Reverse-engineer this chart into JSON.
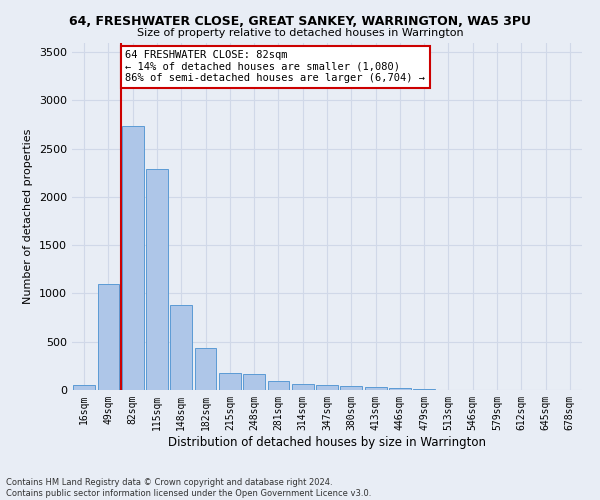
{
  "title": "64, FRESHWATER CLOSE, GREAT SANKEY, WARRINGTON, WA5 3PU",
  "subtitle": "Size of property relative to detached houses in Warrington",
  "xlabel": "Distribution of detached houses by size in Warrington",
  "ylabel": "Number of detached properties",
  "categories": [
    "16sqm",
    "49sqm",
    "82sqm",
    "115sqm",
    "148sqm",
    "182sqm",
    "215sqm",
    "248sqm",
    "281sqm",
    "314sqm",
    "347sqm",
    "380sqm",
    "413sqm",
    "446sqm",
    "479sqm",
    "513sqm",
    "546sqm",
    "579sqm",
    "612sqm",
    "645sqm",
    "678sqm"
  ],
  "values": [
    55,
    1100,
    2730,
    2290,
    880,
    430,
    175,
    165,
    95,
    60,
    55,
    45,
    35,
    25,
    10,
    5,
    5,
    0,
    0,
    0,
    0
  ],
  "bar_color": "#aec6e8",
  "bar_edge_color": "#5b9bd5",
  "vline_x": 2,
  "vline_color": "#cc0000",
  "annotation_text": "64 FRESHWATER CLOSE: 82sqm\n← 14% of detached houses are smaller (1,080)\n86% of semi-detached houses are larger (6,704) →",
  "annotation_box_color": "#ffffff",
  "annotation_box_edge": "#cc0000",
  "ylim": [
    0,
    3600
  ],
  "yticks": [
    0,
    500,
    1000,
    1500,
    2000,
    2500,
    3000,
    3500
  ],
  "grid_color": "#d0d8e8",
  "bg_color": "#e8edf5",
  "footer_line1": "Contains HM Land Registry data © Crown copyright and database right 2024.",
  "footer_line2": "Contains public sector information licensed under the Open Government Licence v3.0."
}
